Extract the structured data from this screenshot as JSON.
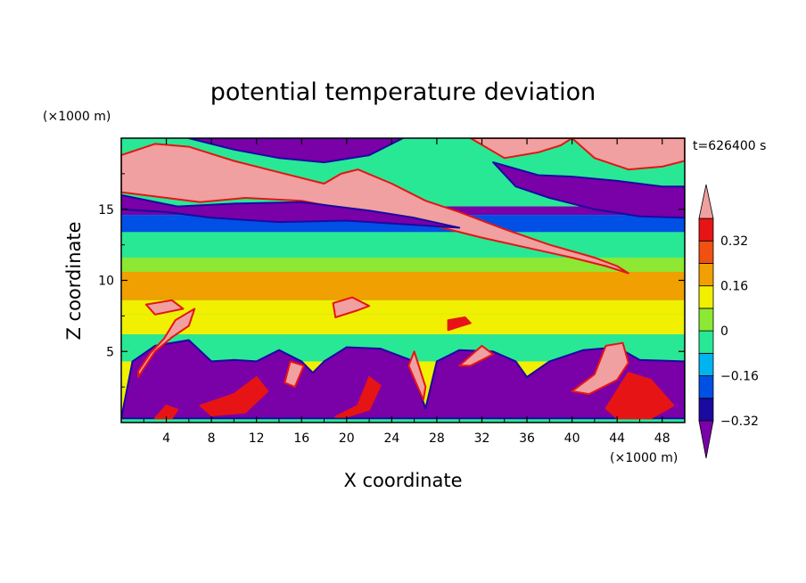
{
  "chart_data": {
    "type": "heatmap",
    "title": "potential temperature deviation",
    "xlabel": "X coordinate",
    "ylabel": "Z coordinate",
    "x_unit": "(×1000 m)",
    "y_unit": "(×1000 m)",
    "time_label": "t=626400 s",
    "xlim": [
      0,
      50
    ],
    "ylim": [
      0,
      20
    ],
    "x_ticks": [
      4,
      8,
      12,
      16,
      20,
      24,
      28,
      32,
      36,
      40,
      44,
      48
    ],
    "y_ticks": [
      5,
      10,
      15
    ],
    "colorbar": {
      "labels": [
        "0.32",
        "0.16",
        "0",
        "−0.16",
        "−0.32"
      ],
      "label_values": [
        0.32,
        0.16,
        0,
        -0.16,
        -0.32
      ],
      "levels": [
        -0.4,
        -0.32,
        -0.24,
        -0.16,
        -0.08,
        0,
        0.08,
        0.16,
        0.24,
        0.32,
        0.4
      ],
      "colors": [
        "#7a00a8",
        "#1a0aa0",
        "#0050e6",
        "#00b4f0",
        "#28e896",
        "#8ce832",
        "#f0f000",
        "#f0a000",
        "#f05010",
        "#e61414",
        "#f0a0a0"
      ],
      "extend": "both"
    },
    "regions": [
      {
        "value": 0.45,
        "polygon": [
          [
            0,
            18.8
          ],
          [
            3,
            19.6
          ],
          [
            6,
            19.4
          ],
          [
            10,
            18.4
          ],
          [
            14,
            17.6
          ],
          [
            18,
            16.8
          ],
          [
            19.5,
            17.5
          ],
          [
            21,
            17.8
          ],
          [
            24,
            16.8
          ],
          [
            27,
            15.6
          ],
          [
            30,
            14.8
          ],
          [
            34,
            13.6
          ],
          [
            38,
            12.5
          ],
          [
            42,
            11.6
          ],
          [
            44,
            11.0
          ],
          [
            45,
            10.5
          ],
          [
            43,
            11.0
          ],
          [
            40,
            11.6
          ],
          [
            36,
            12.3
          ],
          [
            32,
            13.0
          ],
          [
            28,
            13.8
          ],
          [
            24,
            14.5
          ],
          [
            20,
            15.0
          ],
          [
            16,
            15.6
          ],
          [
            11,
            15.8
          ],
          [
            7,
            15.5
          ],
          [
            3,
            15.9
          ],
          [
            0,
            16.2
          ]
        ]
      },
      {
        "value": 0.45,
        "polygon": [
          [
            31,
            20
          ],
          [
            34,
            18.6
          ],
          [
            37,
            19.0
          ],
          [
            39,
            19.5
          ],
          [
            40,
            20
          ]
        ]
      },
      {
        "value": 0.45,
        "polygon": [
          [
            40,
            20
          ],
          [
            42,
            18.6
          ],
          [
            45,
            17.8
          ],
          [
            48,
            18.0
          ],
          [
            50,
            18.4
          ],
          [
            50,
            20
          ]
        ]
      },
      {
        "value": -0.45,
        "polygon": [
          [
            6,
            20
          ],
          [
            10,
            19.2
          ],
          [
            14,
            18.6
          ],
          [
            18,
            18.3
          ],
          [
            22,
            18.8
          ],
          [
            25,
            20
          ]
        ]
      },
      {
        "value": -0.45,
        "polygon": [
          [
            0,
            16.0
          ],
          [
            5,
            15.2
          ],
          [
            10,
            15.4
          ],
          [
            16,
            15.5
          ],
          [
            22,
            14.9
          ],
          [
            26,
            14.4
          ],
          [
            30,
            13.7
          ],
          [
            26,
            13.9
          ],
          [
            20,
            14.2
          ],
          [
            14,
            14.1
          ],
          [
            8,
            14.4
          ],
          [
            4,
            14.8
          ],
          [
            0,
            15.0
          ]
        ]
      },
      {
        "value": -0.45,
        "polygon": [
          [
            33,
            18.3
          ],
          [
            37,
            17.4
          ],
          [
            40,
            17.3
          ],
          [
            44,
            17.0
          ],
          [
            48,
            16.6
          ],
          [
            50,
            16.6
          ],
          [
            50,
            14.4
          ],
          [
            46,
            14.5
          ],
          [
            42,
            15.0
          ],
          [
            38,
            15.8
          ],
          [
            35,
            16.6
          ]
        ]
      },
      {
        "value": -0.45,
        "polygon": [
          [
            1,
            4.3
          ],
          [
            3,
            5.4
          ],
          [
            6,
            5.8
          ],
          [
            8,
            4.3
          ],
          [
            10,
            4.4
          ],
          [
            12,
            4.3
          ],
          [
            14,
            5.1
          ],
          [
            16,
            4.3
          ],
          [
            17,
            3.5
          ],
          [
            18,
            4.3
          ],
          [
            20,
            5.3
          ],
          [
            23,
            5.2
          ],
          [
            26,
            4.3
          ],
          [
            26,
            3.2
          ],
          [
            27,
            1.0
          ],
          [
            28,
            4.3
          ],
          [
            30,
            5.1
          ],
          [
            33,
            5.0
          ],
          [
            35,
            4.3
          ],
          [
            36,
            3.2
          ],
          [
            38,
            4.3
          ],
          [
            41,
            5.1
          ],
          [
            44,
            5.3
          ],
          [
            46,
            4.4
          ],
          [
            50,
            4.3
          ],
          [
            50,
            0.3
          ],
          [
            0,
            0.3
          ]
        ]
      },
      {
        "value": 0.45,
        "polygon": [
          [
            1.5,
            3.2
          ],
          [
            3,
            5.0
          ],
          [
            4.5,
            6.0
          ],
          [
            6,
            6.8
          ],
          [
            6.5,
            8.0
          ],
          [
            4.8,
            7.2
          ],
          [
            3.8,
            5.9
          ],
          [
            2.6,
            4.9
          ],
          [
            1.5,
            3.6
          ]
        ]
      },
      {
        "value": 0.45,
        "polygon": [
          [
            40,
            2.2
          ],
          [
            42,
            3.4
          ],
          [
            43,
            5.4
          ],
          [
            44.5,
            5.6
          ],
          [
            45,
            4.2
          ],
          [
            44,
            3.0
          ],
          [
            41.5,
            2.0
          ]
        ]
      },
      {
        "value": 0.45,
        "polygon": [
          [
            25.5,
            4.0
          ],
          [
            26,
            5.0
          ],
          [
            27,
            2.5
          ],
          [
            26.8,
            1.6
          ]
        ]
      },
      {
        "value": 0.45,
        "polygon": [
          [
            14.5,
            2.8
          ],
          [
            15,
            4.3
          ],
          [
            16.2,
            4.0
          ],
          [
            15.4,
            2.5
          ]
        ]
      },
      {
        "value": 0.45,
        "polygon": [
          [
            30,
            4.0
          ],
          [
            32,
            5.4
          ],
          [
            33,
            4.8
          ],
          [
            31,
            4.0
          ]
        ]
      },
      {
        "value": 0.45,
        "polygon": [
          [
            2.2,
            8.3
          ],
          [
            4.5,
            8.6
          ],
          [
            5.5,
            8.0
          ],
          [
            3,
            7.6
          ]
        ]
      },
      {
        "value": 0.45,
        "polygon": [
          [
            19,
            7.4
          ],
          [
            21,
            7.9
          ],
          [
            22,
            8.2
          ],
          [
            20.5,
            8.8
          ],
          [
            18.8,
            8.4
          ]
        ]
      },
      {
        "value": 0.24,
        "polygon": [
          [
            7,
            1.2
          ],
          [
            10,
            2.0
          ],
          [
            12,
            3.2
          ],
          [
            13,
            2.2
          ],
          [
            11,
            0.7
          ],
          [
            8,
            0.5
          ]
        ]
      },
      {
        "value": 0.24,
        "polygon": [
          [
            19,
            0.4
          ],
          [
            21,
            1.2
          ],
          [
            22,
            3.2
          ],
          [
            23,
            2.6
          ],
          [
            22,
            0.9
          ],
          [
            20,
            0.4
          ]
        ]
      },
      {
        "value": 0.24,
        "polygon": [
          [
            43,
            1.0
          ],
          [
            45,
            3.5
          ],
          [
            47,
            3.0
          ],
          [
            49,
            1.2
          ],
          [
            47,
            0.3
          ],
          [
            44,
            0.3
          ]
        ]
      },
      {
        "value": 0.24,
        "polygon": [
          [
            3,
            0.3
          ],
          [
            4,
            1.2
          ],
          [
            5,
            0.9
          ],
          [
            4.5,
            0.3
          ]
        ]
      },
      {
        "value": 0.24,
        "polygon": [
          [
            29,
            6.5
          ],
          [
            31,
            7.0
          ],
          [
            30.5,
            7.4
          ],
          [
            29,
            7.2
          ]
        ]
      }
    ]
  }
}
